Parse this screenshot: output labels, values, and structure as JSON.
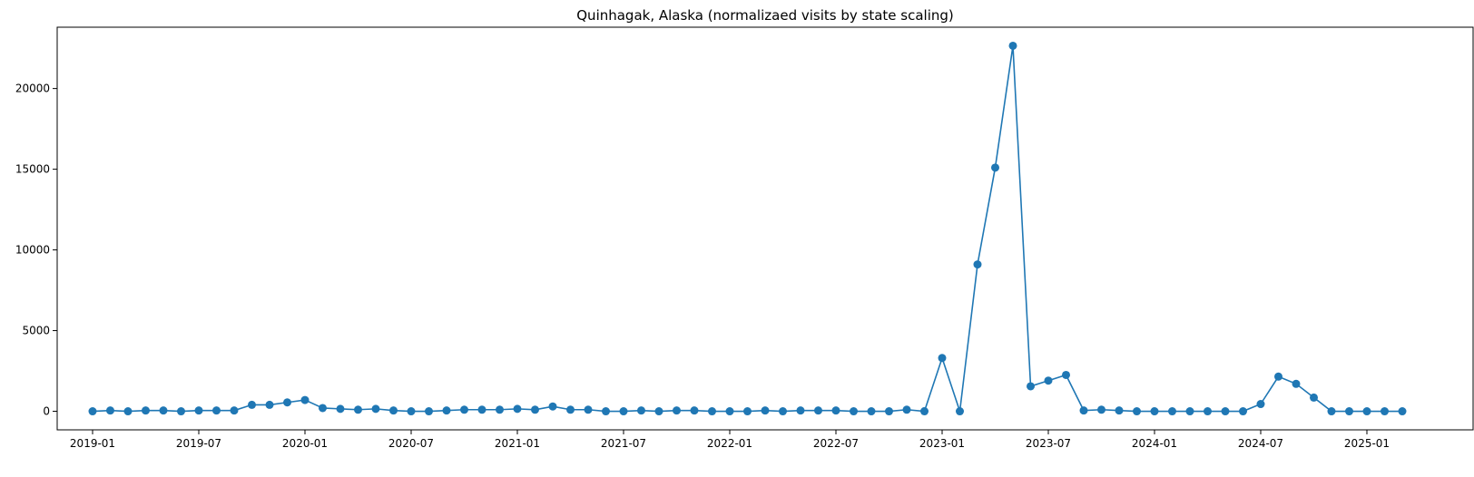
{
  "chart_data": {
    "type": "line",
    "title": "Quinhagak, Alaska (normalizaed visits by state scaling)",
    "xlabel": "",
    "ylabel": "",
    "grid": false,
    "legend": "none",
    "color": "#1f77b4",
    "x_ticks": [
      "2019-01",
      "2019-07",
      "2020-01",
      "2020-07",
      "2021-01",
      "2021-07",
      "2022-01",
      "2022-07",
      "2023-01",
      "2023-07",
      "2024-01",
      "2024-07",
      "2025-01"
    ],
    "y_ticks": [
      0,
      5000,
      10000,
      15000,
      20000
    ],
    "xlim": [
      "2018-11",
      "2025-07"
    ],
    "ylim": [
      -1150,
      23800
    ],
    "series": [
      {
        "x": [
          "2019-01",
          "2019-02",
          "2019-03",
          "2019-04",
          "2019-05",
          "2019-06",
          "2019-07",
          "2019-08",
          "2019-09",
          "2019-10",
          "2019-11",
          "2019-12",
          "2020-01",
          "2020-02",
          "2020-03",
          "2020-04",
          "2020-05",
          "2020-06",
          "2020-07",
          "2020-08",
          "2020-09",
          "2020-10",
          "2020-11",
          "2020-12",
          "2021-01",
          "2021-02",
          "2021-03",
          "2021-04",
          "2021-05",
          "2021-06",
          "2021-07",
          "2021-08",
          "2021-09",
          "2021-10",
          "2021-11",
          "2021-12",
          "2022-01",
          "2022-02",
          "2022-03",
          "2022-04",
          "2022-05",
          "2022-06",
          "2022-07",
          "2022-08",
          "2022-09",
          "2022-10",
          "2022-11",
          "2022-12",
          "2023-01",
          "2023-02",
          "2023-03",
          "2023-04",
          "2023-05",
          "2023-06",
          "2023-07",
          "2023-08",
          "2023-09",
          "2023-10",
          "2023-11",
          "2023-12",
          "2024-01",
          "2024-02",
          "2024-03",
          "2024-04",
          "2024-05",
          "2024-06",
          "2024-07",
          "2024-08",
          "2024-09",
          "2024-10",
          "2024-11",
          "2024-12",
          "2025-01",
          "2025-02",
          "2025-03"
        ],
        "values": [
          0,
          50,
          0,
          50,
          50,
          0,
          50,
          50,
          50,
          400,
          400,
          550,
          700,
          200,
          150,
          100,
          150,
          50,
          0,
          0,
          50,
          100,
          100,
          100,
          150,
          100,
          300,
          100,
          100,
          0,
          0,
          50,
          0,
          50,
          50,
          0,
          0,
          0,
          50,
          0,
          50,
          50,
          50,
          0,
          0,
          0,
          100,
          0,
          3300,
          0,
          9100,
          15100,
          22650,
          1550,
          1900,
          2250,
          50,
          100,
          50,
          0,
          0,
          0,
          0,
          0,
          0,
          0,
          450,
          2150,
          1700,
          850,
          0,
          0,
          0,
          0,
          0
        ]
      }
    ]
  }
}
